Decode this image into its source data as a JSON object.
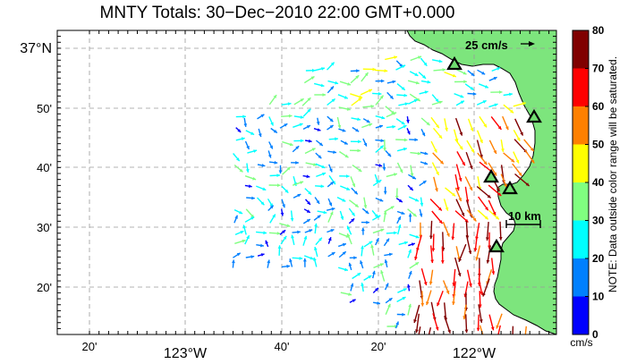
{
  "title": "MNTY Totals: 30−Dec−2010 22:00 GMT+0.000",
  "lat_labels": [
    {
      "text": "37°N",
      "big": true
    },
    {
      "text": "50'"
    },
    {
      "text": "40'"
    },
    {
      "text": "30'"
    },
    {
      "text": "20'"
    }
  ],
  "lon_labels": [
    {
      "text": "20'"
    },
    {
      "text": "123°W",
      "big": true
    },
    {
      "text": "40'"
    },
    {
      "text": "20'"
    },
    {
      "text": "122°W",
      "big": true
    }
  ],
  "legend": {
    "ref_vector": "25 cm/s",
    "scale_bar": "10 km",
    "colorbar_ticks": [
      "80",
      "70",
      "60",
      "50",
      "40",
      "30",
      "20",
      "10",
      "0"
    ],
    "units": "cm/s",
    "note": "NOTE: Data outside color range will be saturated."
  },
  "colors": {
    "land": "#7de57d",
    "colormap": [
      "#0000ff",
      "#0080ff",
      "#00ffff",
      "#80ff80",
      "#ffff00",
      "#ff8000",
      "#ff0000",
      "#800000"
    ]
  },
  "stations": 5
}
